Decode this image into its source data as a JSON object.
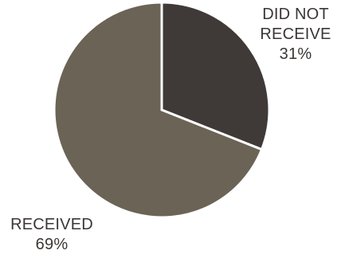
{
  "chart_data": {
    "type": "pie",
    "slices": [
      {
        "label_lines": [
          "DID NOT",
          "RECEIVE"
        ],
        "value": 31,
        "value_text": "31%",
        "color": "#3f3a38"
      },
      {
        "label_lines": [
          "RECEIVED"
        ],
        "value": 69,
        "value_text": "69%",
        "color": "#6b6356"
      }
    ],
    "start_angle": "12 o'clock",
    "direction": "clockwise",
    "separator_color": "#ffffff",
    "legend": "none"
  }
}
